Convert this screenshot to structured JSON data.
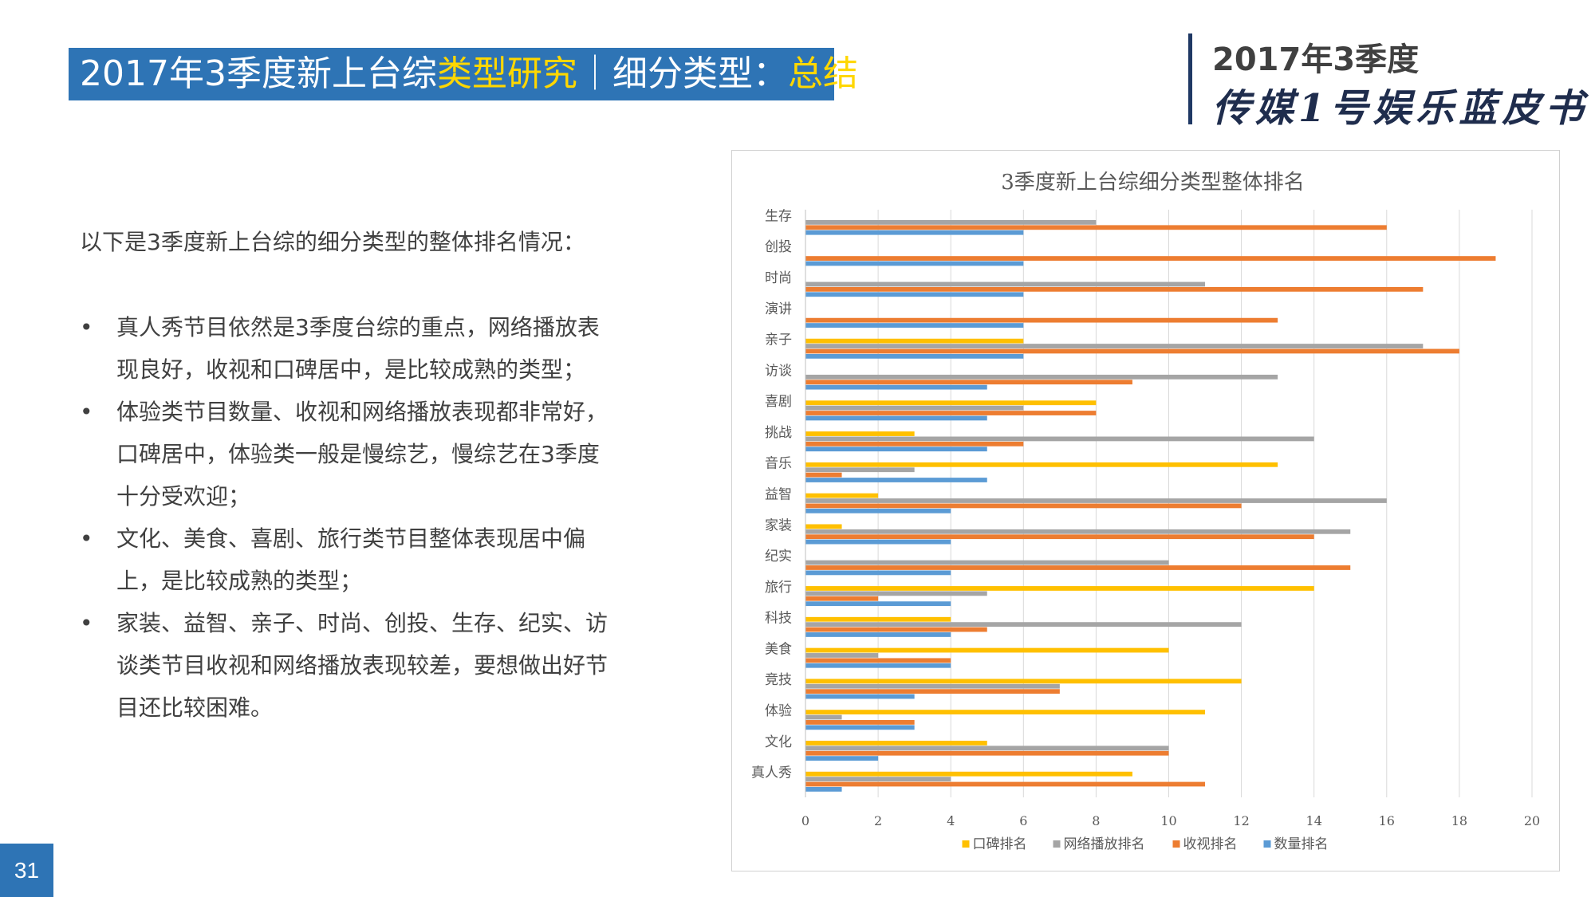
{
  "header": {
    "title_part1": "2017年3季度新上台综",
    "title_highlight1": "类型研究",
    "title_part2": "｜细分类型：",
    "title_highlight2": "总结",
    "brand_year": "2017年3季度",
    "brand_name": "传媒1号娱乐蓝皮书"
  },
  "body": {
    "intro": "以下是3季度新上台综的细分类型的整体排名情况：",
    "bullet_symbol": "•",
    "bullets": [
      {
        "line1": "真人秀节目依然是3季度台综的重点，网络播放表",
        "line2": "现良好，收视和口碑居中，是比较成熟的类型；",
        "line3": ""
      },
      {
        "line1": "体验类节目数量、收视和网络播放表现都非常好，",
        "line2": "口碑居中，体验类一般是慢综艺，慢综艺在3季度",
        "line3": "十分受欢迎；"
      },
      {
        "line1": "文化、美食、喜剧、旅行类节目整体表现居中偏",
        "line2": "上，是比较成熟的类型；",
        "line3": ""
      },
      {
        "line1": "家装、益智、亲子、时尚、创投、生存、纪实、访",
        "line2": "谈类节目收视和网络播放表现较差，要想做出好节",
        "line3": "目还比较困难。"
      }
    ]
  },
  "chart_data": {
    "type": "bar",
    "orientation": "horizontal",
    "title": "3季度新上台综细分类型整体排名",
    "categories": [
      "生存",
      "创投",
      "时尚",
      "演讲",
      "亲子",
      "访谈",
      "喜剧",
      "挑战",
      "音乐",
      "益智",
      "家装",
      "纪实",
      "旅行",
      "科技",
      "美食",
      "竞技",
      "体验",
      "文化",
      "真人秀"
    ],
    "series": [
      {
        "name": "口碑排名",
        "color": "#ffc000",
        "values": [
          0,
          0,
          0,
          0,
          6,
          0,
          8,
          3,
          13,
          2,
          1,
          0,
          14,
          4,
          10,
          12,
          11,
          5,
          9
        ]
      },
      {
        "name": "网络播放排名",
        "color": "#a5a5a5",
        "values": [
          8,
          0,
          11,
          0,
          17,
          13,
          6,
          14,
          3,
          16,
          15,
          10,
          5,
          12,
          2,
          7,
          1,
          10,
          4
        ]
      },
      {
        "name": "收视排名",
        "color": "#ed7d31",
        "values": [
          16,
          19,
          17,
          13,
          18,
          9,
          8,
          6,
          1,
          12,
          14,
          15,
          2,
          5,
          4,
          7,
          3,
          10,
          11
        ]
      },
      {
        "name": "数量排名",
        "color": "#5b9bd5",
        "values": [
          6,
          6,
          6,
          6,
          6,
          5,
          5,
          5,
          5,
          4,
          4,
          4,
          4,
          4,
          4,
          3,
          3,
          2,
          1
        ]
      }
    ],
    "xlim": [
      0,
      20
    ],
    "xticks": [
      "0",
      "2",
      "4",
      "6",
      "8",
      "10",
      "12",
      "14",
      "16",
      "18",
      "20"
    ],
    "grid": true,
    "legend_position": "bottom"
  },
  "footer": {
    "page_number": "31"
  }
}
